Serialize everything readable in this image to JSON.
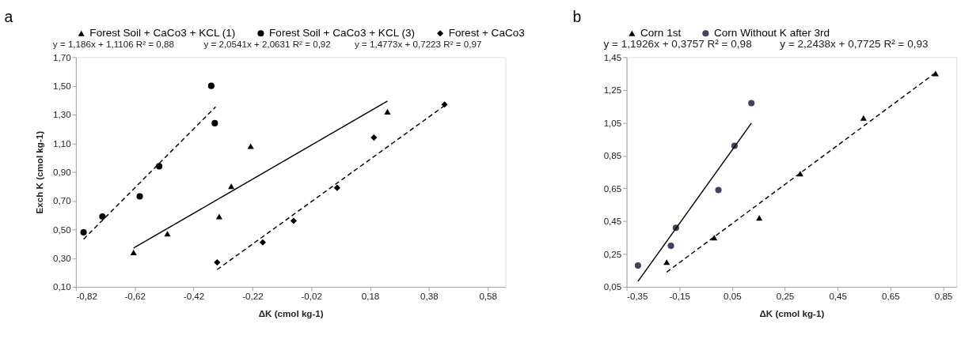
{
  "chart_data": [
    {
      "type": "scatter",
      "title": "a",
      "xlabel": "ΔK (cmol kg-1)",
      "ylabel": "Exch K (cmol kg-1)",
      "legend": "top",
      "grid": false,
      "xlim": [
        -0.82,
        0.64
      ],
      "ylim": [
        0.1,
        1.7
      ],
      "xticks": [
        {
          "value": -0.82,
          "label": "-0,82"
        },
        {
          "value": -0.62,
          "label": "-0,62"
        },
        {
          "value": -0.42,
          "label": "-0,42"
        },
        {
          "value": -0.22,
          "label": "-0,22"
        },
        {
          "value": -0.02,
          "label": "-0,02"
        },
        {
          "value": 0.18,
          "label": "0,18"
        },
        {
          "value": 0.38,
          "label": "0,38"
        },
        {
          "value": 0.58,
          "label": "0,58"
        }
      ],
      "yticks": [
        {
          "value": 0.1,
          "label": "0,10"
        },
        {
          "value": 0.3,
          "label": "0,30"
        },
        {
          "value": 0.5,
          "label": "0,50"
        },
        {
          "value": 0.7,
          "label": "0,70"
        },
        {
          "value": 0.9,
          "label": "0,90"
        },
        {
          "value": 1.1,
          "label": "1,10"
        },
        {
          "value": 1.3,
          "label": "1,30"
        },
        {
          "value": 1.5,
          "label": "1,50"
        },
        {
          "value": 1.7,
          "label": "1,70"
        }
      ],
      "annotations": [
        "y = 1,186x + 1,1106 R² = 0,88",
        "y = 2,0541x + 2,0631 R² = 0,92",
        "y = 1,4773x + 0,7223 R² = 0,97"
      ],
      "series": [
        {
          "name": "Forest Soil + CaCo3 + KCL (1)",
          "type": "scatter",
          "marker": "triangle",
          "color": "#000000",
          "x": [
            -0.624,
            -0.509,
            -0.333,
            -0.292,
            -0.226,
            0.239
          ],
          "values": [
            0.34,
            0.47,
            0.59,
            0.8,
            1.08,
            1.32
          ]
        },
        {
          "name": "Forest Soil + CaCo3 + KCL (3)",
          "type": "scatter",
          "marker": "circle",
          "color": "#000000",
          "x": [
            -0.794,
            -0.73,
            -0.603,
            -0.537,
            -0.36,
            -0.348
          ],
          "values": [
            0.48,
            0.59,
            0.73,
            0.94,
            1.5,
            1.24
          ]
        },
        {
          "name": "Forest + CaCo3",
          "type": "scatter",
          "marker": "diamond",
          "color": "#000000",
          "x": [
            -0.34,
            -0.185,
            -0.08,
            0.068,
            0.193,
            0.433
          ],
          "values": [
            0.27,
            0.41,
            0.56,
            0.79,
            1.14,
            1.37
          ]
        },
        {
          "type": "line",
          "marker": "none",
          "line_style": "solid",
          "color": "#000000",
          "x": [
            -0.624,
            0.239
          ],
          "values": [
            0.37,
            1.394
          ]
        },
        {
          "type": "line",
          "marker": "none",
          "line_style": "dashed",
          "color": "#000000",
          "x": [
            -0.794,
            -0.345
          ],
          "values": [
            0.432,
            1.354
          ]
        },
        {
          "type": "line",
          "marker": "none",
          "line_style": "dashed",
          "color": "#000000",
          "x": [
            -0.34,
            0.433
          ],
          "values": [
            0.22,
            1.362
          ]
        }
      ]
    },
    {
      "type": "scatter",
      "title": "b",
      "xlabel": "ΔK (cmol kg-1)",
      "legend": "top",
      "grid": false,
      "xlim": [
        -0.35,
        0.9
      ],
      "ylim": [
        0.05,
        1.45
      ],
      "xticks": [
        {
          "value": -0.35,
          "label": "-0,35"
        },
        {
          "value": -0.15,
          "label": "-0,15"
        },
        {
          "value": 0.05,
          "label": "0,05"
        },
        {
          "value": 0.25,
          "label": "0,25"
        },
        {
          "value": 0.45,
          "label": "0,45"
        },
        {
          "value": 0.65,
          "label": "0,65"
        },
        {
          "value": 0.85,
          "label": "0,85"
        }
      ],
      "yticks": [
        {
          "value": 0.05,
          "label": "0,05"
        },
        {
          "value": 0.25,
          "label": "0,25"
        },
        {
          "value": 0.45,
          "label": "0,45"
        },
        {
          "value": 0.65,
          "label": "0,65"
        },
        {
          "value": 0.85,
          "label": "0,85"
        },
        {
          "value": 1.05,
          "label": "1,05"
        },
        {
          "value": 1.25,
          "label": "1,25"
        },
        {
          "value": 1.45,
          "label": "1,45"
        }
      ],
      "annotations": [
        "y = 1,1926x + 0,3757 R² = 0,98",
        "y = 2,2438x + 0,7725 R² = 0,93"
      ],
      "series": [
        {
          "name": "Corn 1st",
          "type": "scatter",
          "marker": "triangle",
          "color": "#000000",
          "x": [
            -0.198,
            -0.018,
            0.153,
            0.308,
            0.548,
            0.821
          ],
          "values": [
            0.2,
            0.35,
            0.47,
            0.74,
            1.08,
            1.35
          ]
        },
        {
          "name": "Corn Without K after 3rd",
          "type": "scatter",
          "marker": "circle",
          "color": "#4b3f5e",
          "x": [
            -0.307,
            -0.182,
            -0.163,
            -0.002,
            0.059,
            0.123
          ],
          "values": [
            0.18,
            0.3,
            0.41,
            0.64,
            0.91,
            1.17
          ]
        },
        {
          "type": "line",
          "marker": "none",
          "line_style": "dashed",
          "color": "#000000",
          "x": [
            -0.198,
            0.821
          ],
          "values": [
            0.14,
            1.355
          ]
        },
        {
          "type": "line",
          "marker": "none",
          "line_style": "solid",
          "color": "#000000",
          "x": [
            -0.307,
            0.123
          ],
          "values": [
            0.083,
            1.048
          ]
        }
      ]
    }
  ]
}
